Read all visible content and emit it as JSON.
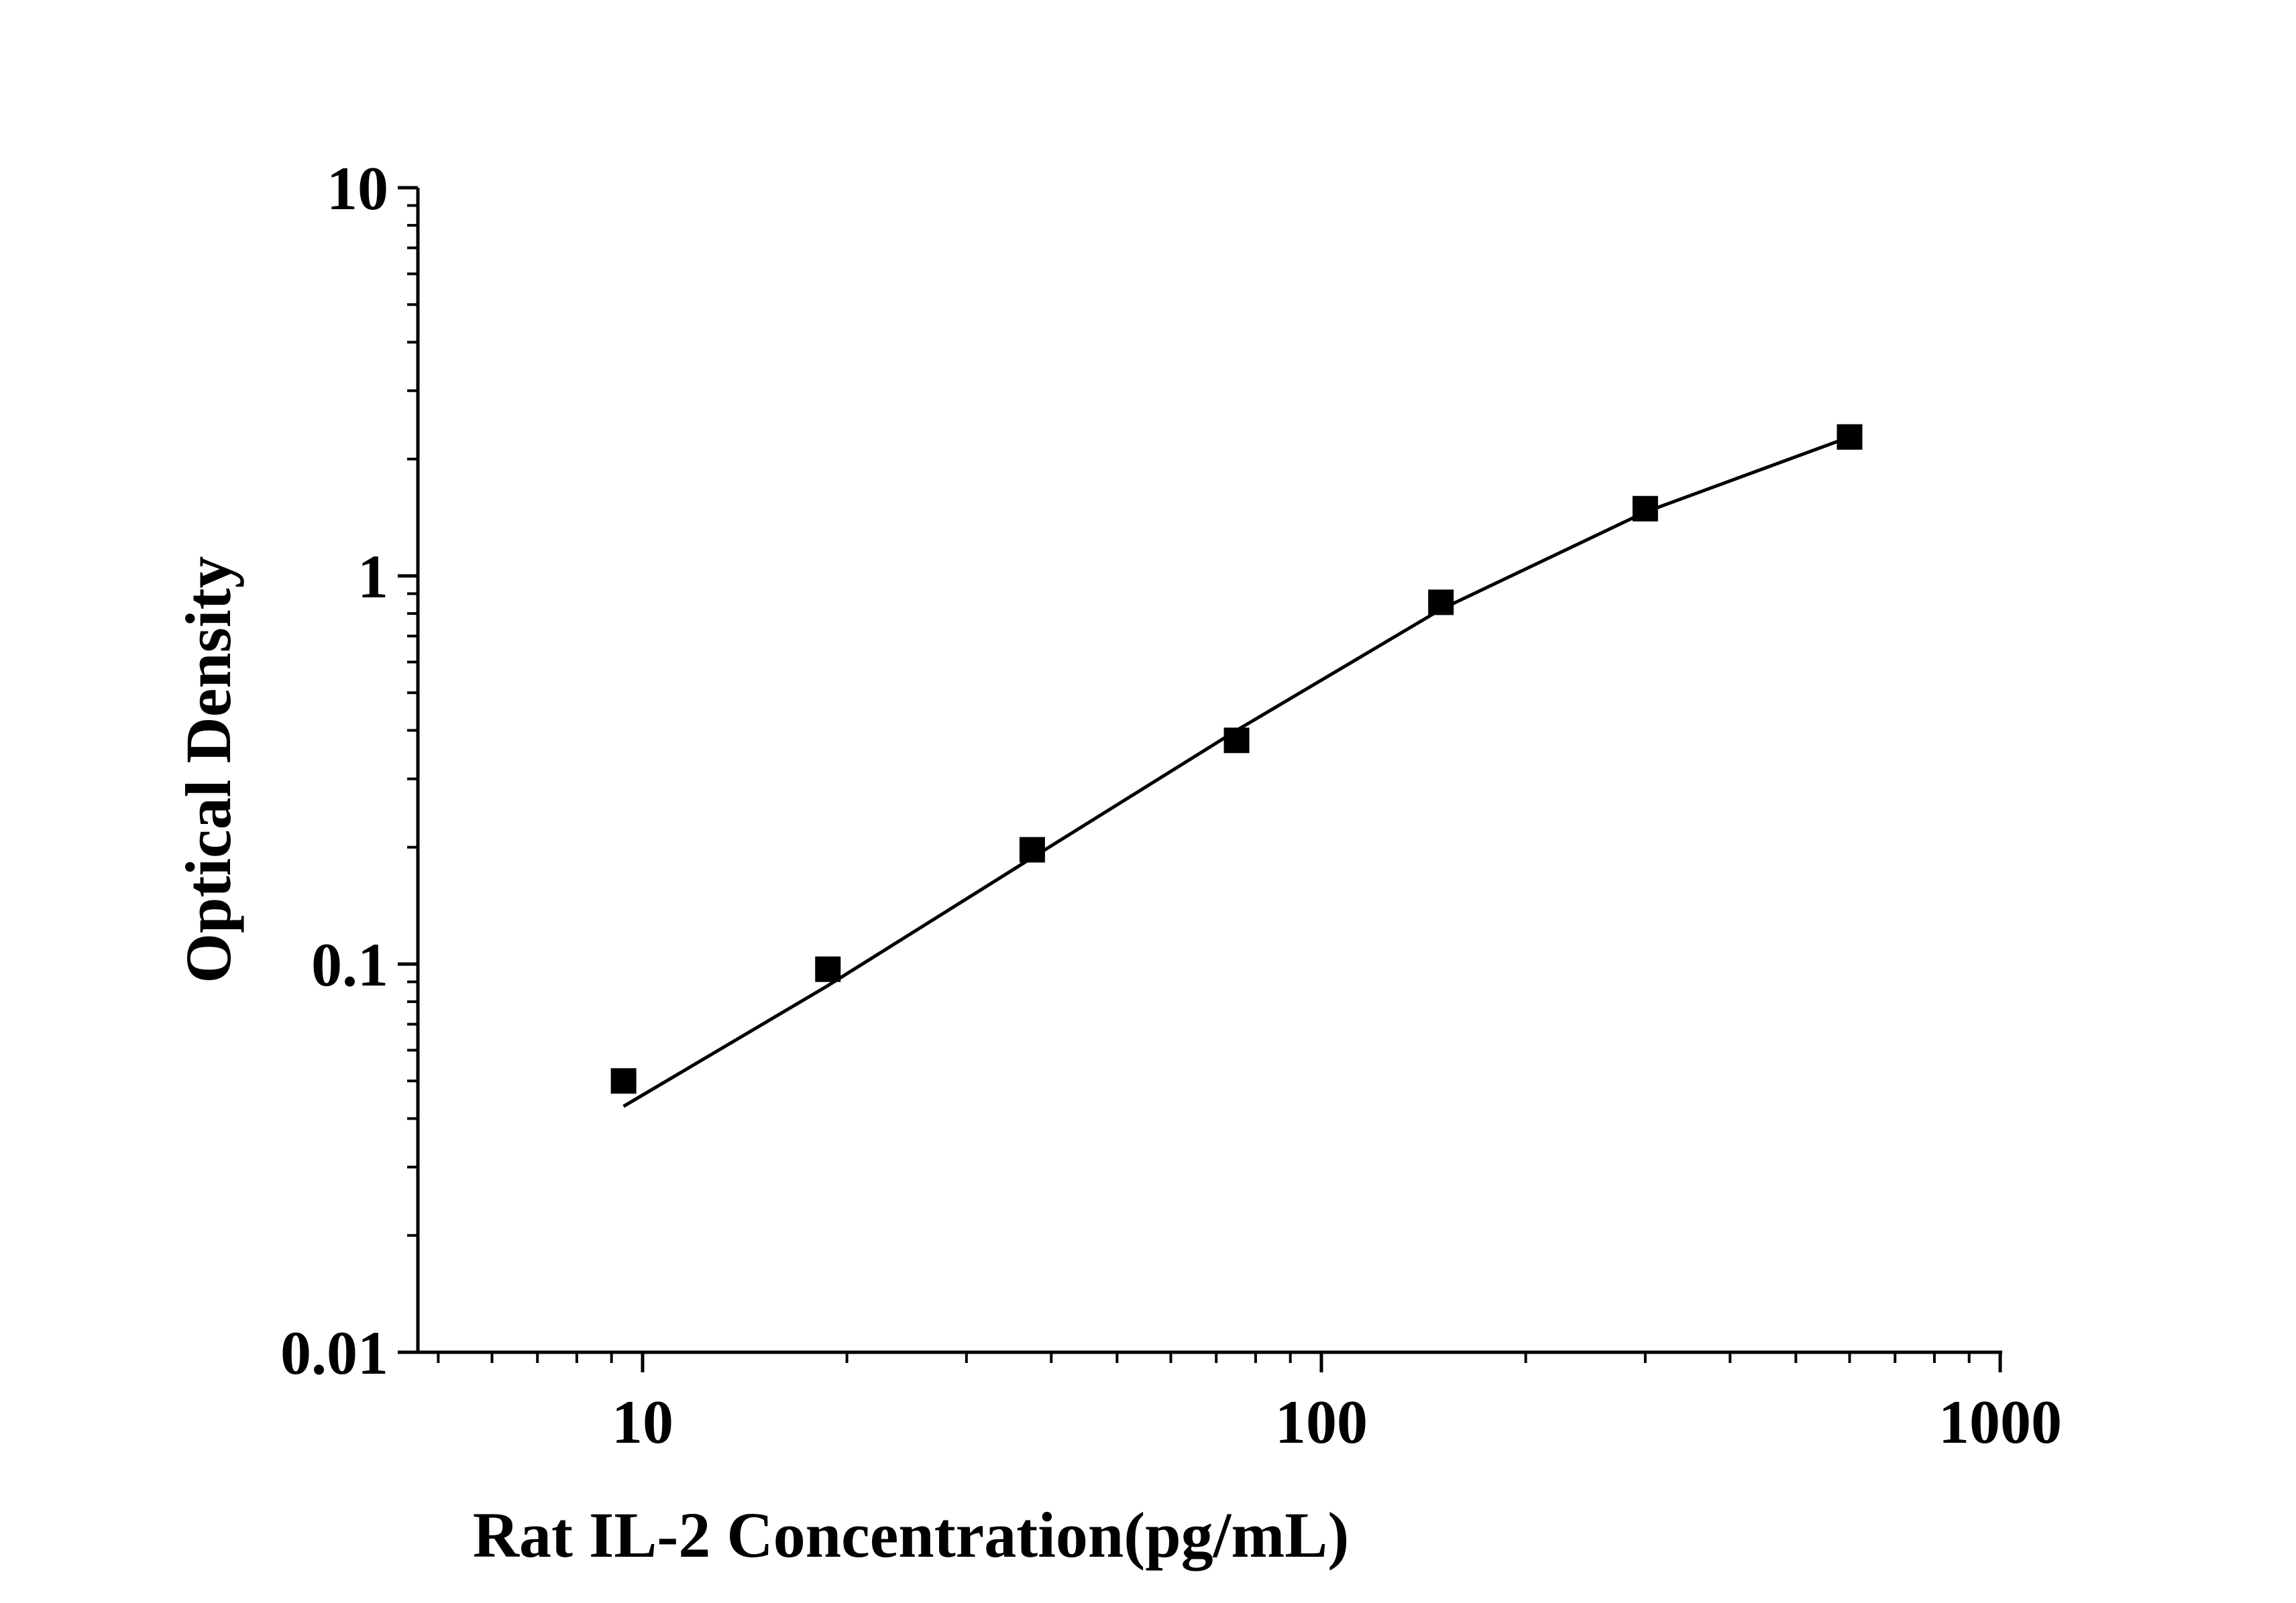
{
  "chart_data": {
    "type": "scatter",
    "xlabel": "Rat IL-2 Concentration(pg/mL)",
    "ylabel": "Optical Density",
    "x_scale": "log",
    "y_scale": "log",
    "xlim": [
      5,
      1000
    ],
    "ylim": [
      0.01,
      10
    ],
    "x_ticks": [
      {
        "value": 10,
        "label": "10"
      },
      {
        "value": 100,
        "label": "100"
      },
      {
        "value": 1000,
        "label": "1000"
      }
    ],
    "y_ticks": [
      {
        "value": 0.01,
        "label": "0.01"
      },
      {
        "value": 0.1,
        "label": "0.1"
      },
      {
        "value": 1,
        "label": "1"
      },
      {
        "value": 10,
        "label": "10"
      }
    ],
    "grid": false,
    "series": [
      {
        "kind": "points",
        "marker": "square",
        "color": "#000000",
        "x": [
          9.375,
          18.75,
          37.5,
          75,
          150,
          300,
          600
        ],
        "y": [
          0.05,
          0.097,
          0.197,
          0.377,
          0.855,
          1.49,
          2.28
        ]
      },
      {
        "kind": "fit-line",
        "color": "#000000",
        "x": [
          9.375,
          18.75,
          37.5,
          75,
          150,
          300,
          600
        ],
        "y": [
          0.043,
          0.088,
          0.188,
          0.4,
          0.82,
          1.46,
          2.28
        ]
      }
    ]
  }
}
